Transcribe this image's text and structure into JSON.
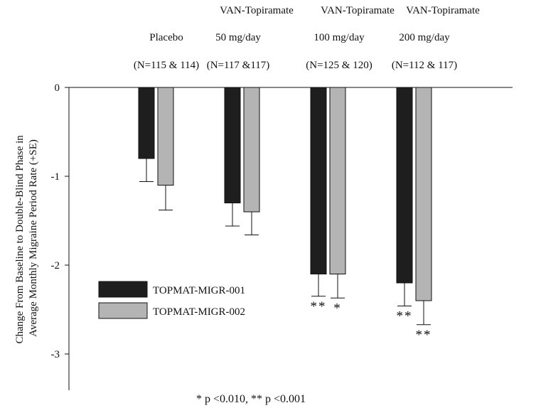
{
  "chart_data": {
    "type": "bar",
    "ylabel_lines": [
      "Change From Baseline to Double-Blind Phase in",
      "Average Monthly Migraine Period Rate (+SE)"
    ],
    "footnote": "* p <0.010, ** p <0.001",
    "ylim": [
      -3.5,
      0
    ],
    "yticks": [
      0,
      -1,
      -2,
      -3
    ],
    "ytick_labels": [
      "0",
      "-1",
      "-2",
      "-3"
    ],
    "groups": [
      {
        "title_lines": [
          "Placebo",
          "(N=115  & 114)"
        ]
      },
      {
        "title_lines": [
          "VAN-Topiramate",
          "50 mg/day",
          "(N=117 &117)"
        ]
      },
      {
        "title_lines": [
          "VAN-Topiramate",
          "100 mg/day",
          "(N=125 & 120)"
        ]
      },
      {
        "title_lines": [
          "VAN-Topiramate",
          "200 mg/day",
          "(N=112 & 117)"
        ]
      }
    ],
    "series": [
      {
        "name": "TOPMAT-MIGR-001",
        "color": "#1e1e1e",
        "values": [
          -0.8,
          -1.3,
          -2.1,
          -2.2
        ],
        "errors": [
          0.26,
          0.26,
          0.25,
          0.26
        ],
        "significance": [
          "",
          "",
          "**",
          "**"
        ]
      },
      {
        "name": "TOPMAT-MIGR-002",
        "color": "#b4b4b4",
        "values": [
          -1.1,
          -1.4,
          -2.1,
          -2.4
        ],
        "errors": [
          0.28,
          0.26,
          0.27,
          0.27
        ],
        "significance": [
          "",
          "",
          "*",
          "**"
        ]
      }
    ],
    "legend_position": "lower-left",
    "grid": false
  }
}
